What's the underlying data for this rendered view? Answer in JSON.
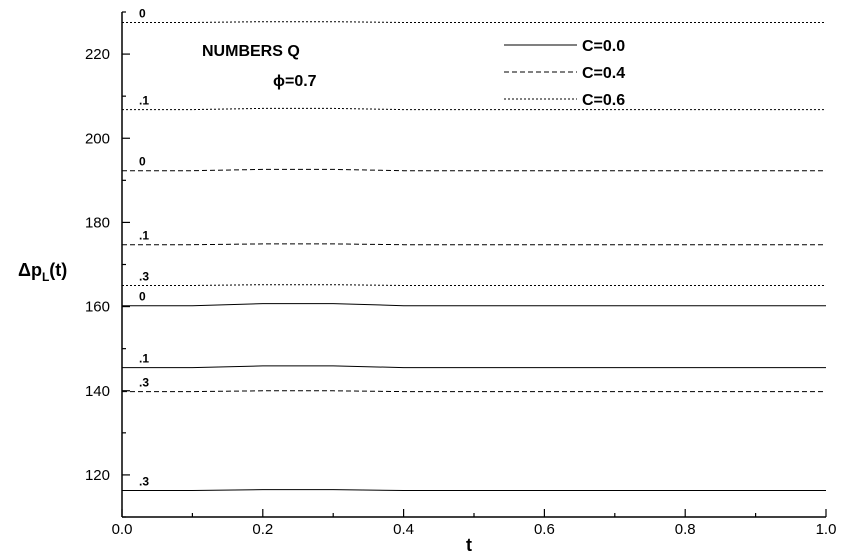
{
  "chart_data": {
    "type": "line",
    "xlabel": "t",
    "ylabel": {
      "main": "Δp",
      "sub": "L",
      "suffix": "(t)"
    },
    "xlim": [
      0.0,
      1.0
    ],
    "ylim": [
      110,
      230
    ],
    "x_ticks": [
      "0.0",
      "0.2",
      "0.4",
      "0.6",
      "0.8",
      "1.0"
    ],
    "y_ticks": [
      "120",
      "140",
      "160",
      "180",
      "200",
      "220"
    ],
    "annotations": {
      "numbers": "NUMBERS Q",
      "phi": "ϕ=0.7"
    },
    "legend": [
      {
        "label": "C=0.0",
        "style": "solid"
      },
      {
        "label": "C=0.4",
        "style": "dashed"
      },
      {
        "label": "C=0.6",
        "style": "dotted"
      }
    ],
    "series": [
      {
        "C": "C=0.6",
        "Q": "0",
        "style": "dotted",
        "x": [
          0.0,
          0.1,
          0.2,
          0.3,
          0.4,
          0.6,
          0.8,
          1.0
        ],
        "y": [
          227.5,
          227.5,
          227.7,
          227.7,
          227.5,
          227.5,
          227.5,
          227.5
        ]
      },
      {
        "C": "C=0.6",
        "Q": ".1",
        "style": "dotted",
        "x": [
          0.0,
          0.1,
          0.2,
          0.3,
          0.4,
          0.6,
          0.8,
          1.0
        ],
        "y": [
          206.8,
          206.8,
          207.1,
          207.1,
          206.8,
          206.8,
          206.8,
          206.8
        ]
      },
      {
        "C": "C=0.4",
        "Q": "0",
        "style": "dashed",
        "x": [
          0.0,
          0.1,
          0.2,
          0.3,
          0.4,
          0.6,
          0.8,
          1.0
        ],
        "y": [
          192.3,
          192.3,
          192.6,
          192.6,
          192.3,
          192.3,
          192.3,
          192.3
        ]
      },
      {
        "C": "C=0.4",
        "Q": ".1",
        "style": "dashed",
        "x": [
          0.0,
          0.1,
          0.2,
          0.3,
          0.4,
          0.6,
          0.8,
          1.0
        ],
        "y": [
          174.7,
          174.7,
          174.9,
          174.9,
          174.7,
          174.7,
          174.7,
          174.7
        ]
      },
      {
        "C": "C=0.6",
        "Q": ".3",
        "style": "dotted",
        "x": [
          0.0,
          0.1,
          0.2,
          0.3,
          0.4,
          0.6,
          0.8,
          1.0
        ],
        "y": [
          165.0,
          165.0,
          165.2,
          165.2,
          165.0,
          165.0,
          165.0,
          165.0
        ]
      },
      {
        "C": "C=0.0",
        "Q": "0",
        "style": "solid",
        "x": [
          0.0,
          0.1,
          0.2,
          0.3,
          0.4,
          0.6,
          0.8,
          1.0
        ],
        "y": [
          160.2,
          160.2,
          160.7,
          160.7,
          160.2,
          160.2,
          160.2,
          160.2
        ]
      },
      {
        "C": "C=0.0",
        "Q": ".1",
        "style": "solid",
        "x": [
          0.0,
          0.1,
          0.2,
          0.3,
          0.4,
          0.6,
          0.8,
          1.0
        ],
        "y": [
          145.5,
          145.5,
          145.9,
          145.9,
          145.5,
          145.5,
          145.5,
          145.5
        ]
      },
      {
        "C": "C=0.4",
        "Q": ".3",
        "style": "dashed",
        "x": [
          0.0,
          0.1,
          0.2,
          0.3,
          0.4,
          0.6,
          0.8,
          1.0
        ],
        "y": [
          139.8,
          139.8,
          140.0,
          140.0,
          139.8,
          139.8,
          139.8,
          139.8
        ]
      },
      {
        "C": "C=0.0",
        "Q": ".3",
        "style": "solid",
        "x": [
          0.0,
          0.1,
          0.2,
          0.3,
          0.4,
          0.6,
          0.8,
          1.0
        ],
        "y": [
          116.3,
          116.3,
          116.5,
          116.5,
          116.3,
          116.3,
          116.3,
          116.3
        ]
      }
    ]
  }
}
